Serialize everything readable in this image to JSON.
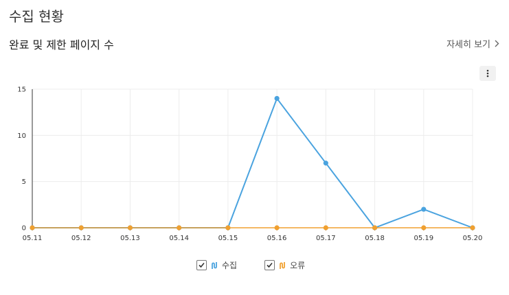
{
  "page": {
    "title": "수집 현황"
  },
  "section": {
    "title": "완료 및 제한 페이지 수",
    "detail_link": "자세히 보기"
  },
  "legend": [
    {
      "label": "수집",
      "color": "#4aa3df",
      "checked": true
    },
    {
      "label": "오류",
      "color": "#f0a030",
      "checked": true
    }
  ],
  "chart_data": {
    "type": "line",
    "x": [
      "05.11",
      "05.12",
      "05.13",
      "05.14",
      "05.15",
      "05.16",
      "05.17",
      "05.18",
      "05.19",
      "05.20"
    ],
    "ylim": [
      0,
      15
    ],
    "yticks": [
      "0",
      "5",
      "10",
      "15"
    ],
    "grid": true,
    "legend_position": "bottom",
    "series": [
      {
        "name": "수집",
        "color": "#4aa3df",
        "values": [
          0,
          0,
          0,
          0,
          0,
          14,
          7,
          0,
          2,
          0
        ]
      },
      {
        "name": "오류",
        "color": "#f0a030",
        "values": [
          0,
          0,
          0,
          0,
          0,
          0,
          0,
          0,
          0,
          0
        ]
      }
    ]
  }
}
